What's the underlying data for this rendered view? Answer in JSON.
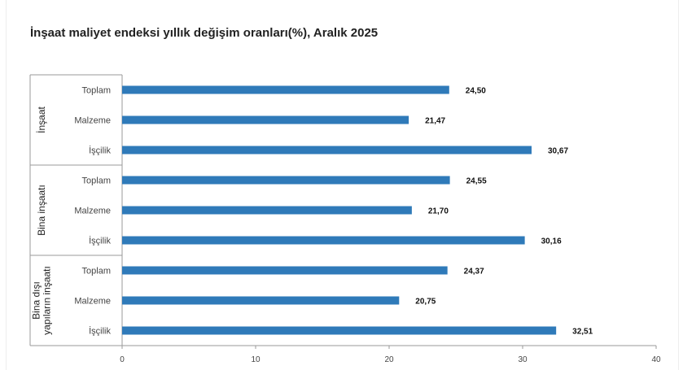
{
  "title": "İnşaat maliyet endeksi yıllık değişim oranları(%), Aralık 2025",
  "colors": {
    "bar": "#2f7ab9",
    "axis": "#9a9a9a",
    "grid": "#e8e8e8"
  },
  "chart_data": {
    "type": "bar",
    "orientation": "horizontal",
    "title": "İnşaat maliyet endeksi yıllık değişim oranları(%), Aralık 2025",
    "xlim": [
      0,
      40
    ],
    "x_ticks": [
      0,
      10,
      20,
      30,
      40
    ],
    "groups": [
      {
        "name": "İnşaat",
        "lines": [
          "İnşaat"
        ],
        "categories": [
          "Toplam",
          "Malzeme",
          "İşçilik"
        ],
        "values": [
          24.5,
          21.47,
          30.67
        ],
        "labels": [
          "24,50",
          "21,47",
          "30,67"
        ]
      },
      {
        "name": "Bina inşaatı",
        "lines": [
          "Bina inşaatı"
        ],
        "categories": [
          "Toplam",
          "Malzeme",
          "İşçilik"
        ],
        "values": [
          24.55,
          21.7,
          30.16
        ],
        "labels": [
          "24,55",
          "21,70",
          "30,16"
        ]
      },
      {
        "name": "Bina dışı yapıların inşaatı",
        "lines": [
          "Bina dışı",
          "yapıların inşaatı"
        ],
        "categories": [
          "Toplam",
          "Malzeme",
          "İşçilik"
        ],
        "values": [
          24.37,
          20.75,
          32.51
        ],
        "labels": [
          "24,37",
          "20,75",
          "32,51"
        ]
      }
    ]
  }
}
